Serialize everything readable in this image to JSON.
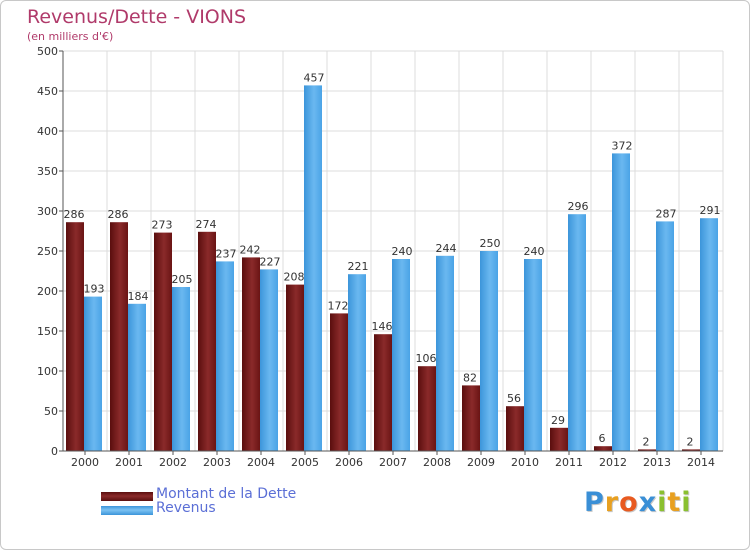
{
  "chart_data": {
    "type": "bar",
    "title": "Revenus/Dette - VIONS",
    "subtitle": "(en milliers d'€)",
    "categories": [
      "2000",
      "2001",
      "2002",
      "2003",
      "2004",
      "2005",
      "2006",
      "2007",
      "2008",
      "2009",
      "2010",
      "2011",
      "2012",
      "2013",
      "2014"
    ],
    "series": [
      {
        "name": "Montant de la Dette",
        "color": "#7a1c1c",
        "values": [
          286,
          286,
          273,
          274,
          242,
          208,
          172,
          146,
          106,
          82,
          56,
          29,
          6,
          2,
          2
        ]
      },
      {
        "name": "Revenus",
        "color": "#4aa3e6",
        "values": [
          193,
          184,
          205,
          237,
          227,
          457,
          221,
          240,
          244,
          250,
          240,
          296,
          372,
          287,
          291
        ]
      }
    ],
    "ylim": [
      0,
      500
    ],
    "yticks": [
      0,
      50,
      100,
      150,
      200,
      250,
      300,
      350,
      400,
      450,
      500
    ],
    "grid": true,
    "legend_position": "bottom-left"
  },
  "logo": {
    "letters": [
      "P",
      "r",
      "o",
      "x",
      "i",
      "t",
      "i"
    ],
    "colors": [
      "#3a8fd6",
      "#e8a020",
      "#e85a20",
      "#3a8fd6",
      "#8ac030",
      "#e8a020",
      "#8ac030"
    ]
  }
}
